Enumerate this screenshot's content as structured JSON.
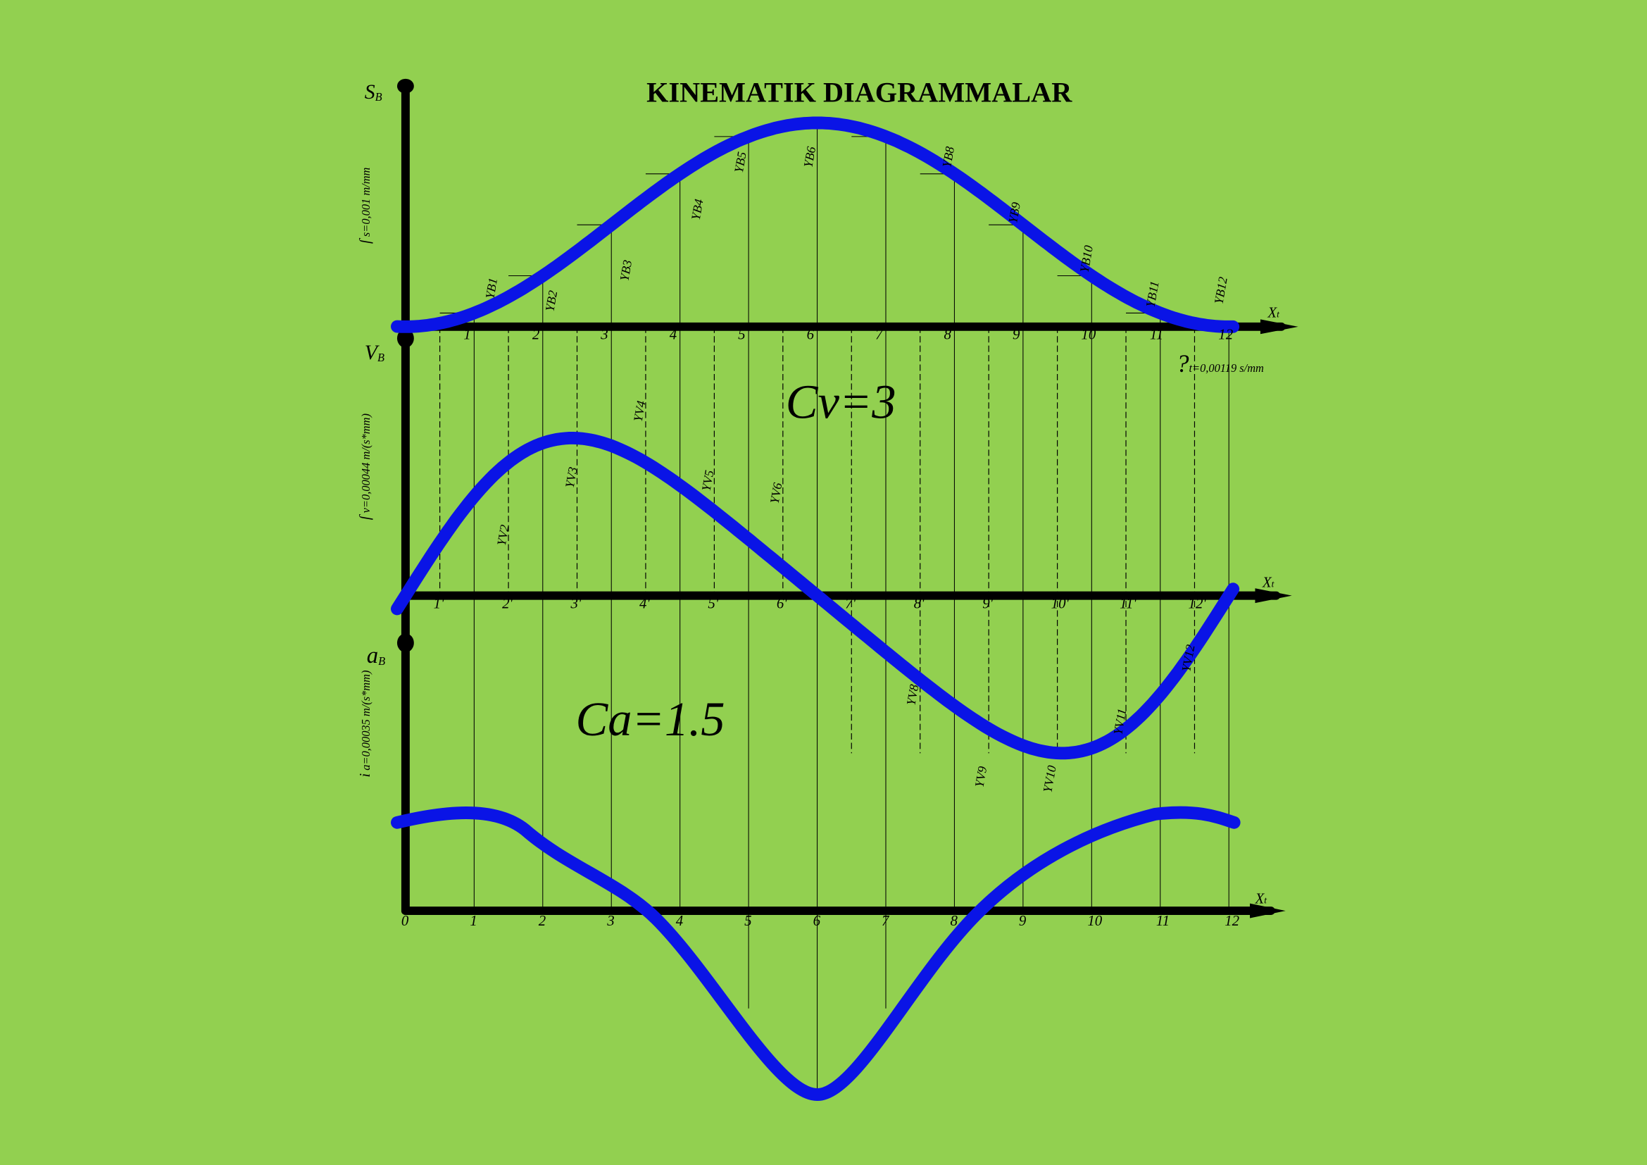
{
  "title": "KINEMATIK DIAGRAMMALAR",
  "axes": {
    "s": {
      "symbol": "S",
      "subscript": "B",
      "scale": "s=0,001 m/mm",
      "scale_mark": "ſ"
    },
    "v": {
      "symbol": "V",
      "subscript": "B",
      "scale": "v=0,00044 m/(s*mm)",
      "scale_mark": "ſ"
    },
    "a": {
      "symbol": "a",
      "subscript": "B",
      "scale": "a=0,00035 m/(s*mm)",
      "scale_mark": "i"
    },
    "time": {
      "symbol": "X",
      "subscript": "t",
      "scale_mark": "?",
      "scale": "t=0,00119 s/mm"
    }
  },
  "s_ticks": [
    "1",
    "2",
    "3",
    "4",
    "5",
    "6",
    "7",
    "8",
    "9",
    "10",
    "11",
    "12"
  ],
  "v_ticks": [
    "1'",
    "2'",
    "3'",
    "4'",
    "5'",
    "6'",
    "7'",
    "8'",
    "9'",
    "10'",
    "11'",
    "12'"
  ],
  "a_ticks": [
    "0",
    "1",
    "2",
    "3",
    "4",
    "5",
    "6",
    "7",
    "8",
    "9",
    "10",
    "11",
    "12"
  ],
  "s_ordinates": [
    "YB1",
    "YB2",
    "YB3",
    "YB4",
    "YB5",
    "YB6",
    "YB8",
    "YB9",
    "YB10",
    "YB11",
    "YB12"
  ],
  "v_ordinates": [
    "YV2",
    "YV3",
    "YV4",
    "YV5",
    "YV6",
    "YV8",
    "YV9",
    "YV10",
    "YV11",
    "YV12"
  ],
  "annotations": {
    "cv": "Cv=3",
    "ca": "Ca=1.5"
  }
}
